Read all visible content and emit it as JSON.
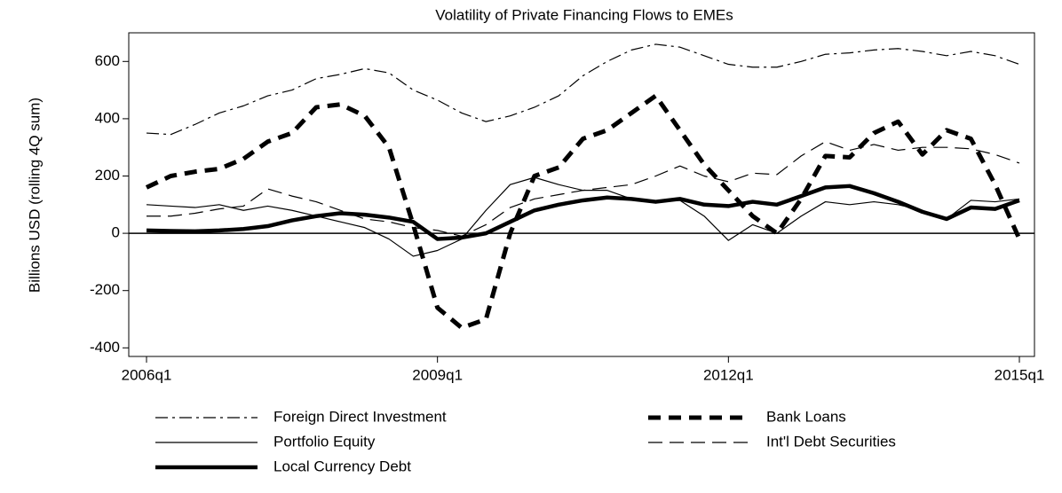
{
  "chart_data": {
    "type": "line",
    "title": "Volatility of Private Financing Flows to EMEs",
    "y_label": "Billions USD (rolling 4Q sum)",
    "categories": [
      "2006q1",
      null,
      null,
      null,
      null,
      null,
      null,
      null,
      null,
      null,
      null,
      null,
      "2009q1",
      null,
      null,
      null,
      null,
      null,
      null,
      null,
      null,
      null,
      null,
      null,
      "2012q1",
      null,
      null,
      null,
      null,
      null,
      null,
      null,
      null,
      null,
      null,
      null,
      "2015q1"
    ],
    "ylim": [
      -430,
      700
    ],
    "yticks": [
      -400,
      -200,
      0,
      200,
      400,
      600
    ],
    "zero_line": true,
    "legend": "bottom",
    "series": [
      {
        "name": "Foreign Direct Investment",
        "color": "#000000",
        "line_style": "dashdot",
        "line_width": 1.2,
        "values": [
          350,
          345,
          380,
          420,
          445,
          480,
          500,
          540,
          555,
          575,
          560,
          500,
          465,
          420,
          390,
          410,
          440,
          480,
          550,
          600,
          640,
          660,
          650,
          620,
          590,
          580,
          580,
          600,
          625,
          630,
          640,
          645,
          635,
          620,
          635,
          620,
          590
        ]
      },
      {
        "name": "Portfolio Equity",
        "color": "#000000",
        "line_style": "solid",
        "line_width": 1.2,
        "values": [
          100,
          95,
          90,
          100,
          80,
          95,
          80,
          60,
          40,
          20,
          -20,
          -80,
          -60,
          -20,
          80,
          170,
          195,
          170,
          150,
          150,
          120,
          110,
          115,
          60,
          -25,
          30,
          0,
          60,
          110,
          100,
          110,
          100,
          80,
          50,
          115,
          110,
          120
        ]
      },
      {
        "name": "Local Currency Debt",
        "color": "#000000",
        "line_style": "solid",
        "line_width": 4.5,
        "values": [
          10,
          8,
          7,
          10,
          15,
          25,
          45,
          60,
          70,
          65,
          55,
          40,
          -20,
          -15,
          0,
          40,
          80,
          100,
          115,
          125,
          120,
          110,
          120,
          100,
          95,
          110,
          100,
          130,
          160,
          165,
          140,
          110,
          75,
          50,
          90,
          85,
          115
        ]
      },
      {
        "name": "Bank Loans",
        "color": "#000000",
        "line_style": "dashed",
        "line_width": 5,
        "values": [
          160,
          200,
          215,
          225,
          260,
          320,
          350,
          440,
          450,
          410,
          300,
          30,
          -260,
          -330,
          -300,
          0,
          200,
          230,
          330,
          360,
          420,
          480,
          360,
          240,
          150,
          60,
          0,
          120,
          270,
          265,
          350,
          390,
          275,
          360,
          330,
          170,
          -20
        ]
      },
      {
        "name": "Int'l Debt Securities",
        "color": "#000000",
        "line_style": "longdash",
        "line_width": 1.2,
        "values": [
          60,
          60,
          70,
          85,
          95,
          155,
          130,
          110,
          80,
          50,
          40,
          20,
          10,
          -10,
          30,
          90,
          120,
          135,
          150,
          160,
          170,
          200,
          235,
          200,
          180,
          210,
          205,
          270,
          320,
          290,
          310,
          290,
          300,
          300,
          295,
          275,
          245
        ]
      }
    ]
  }
}
